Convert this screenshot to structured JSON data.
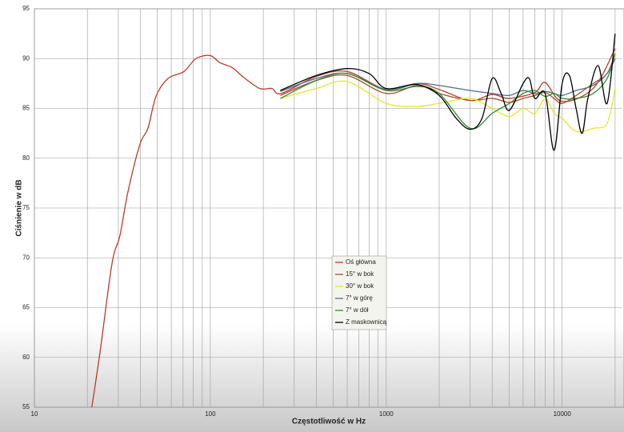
{
  "chart_data": {
    "type": "line",
    "xlabel": "Częstotliwość w Hz",
    "ylabel": "Ciśnienie w dB",
    "xlog": true,
    "grid": true,
    "xgrid_minor": true,
    "legend": "center",
    "xlim": [
      10,
      22000
    ],
    "ylim": [
      55,
      95
    ],
    "xticks": [
      10,
      100,
      1000,
      10000
    ],
    "yticks": [
      55,
      60,
      65,
      70,
      75,
      80,
      85,
      90,
      95
    ],
    "series": [
      {
        "name": "Oś główna",
        "color": "#c0392b",
        "x": [
          21.2,
          23.6,
          27.6,
          30.6,
          34,
          39.8,
          44.2,
          49.1,
          57.4,
          70.8,
          82.8,
          100,
          113,
          133,
          155,
          191,
          224,
          253,
          400,
          600,
          1000,
          1500,
          2000,
          3000,
          4000,
          5000,
          7000,
          8000,
          10000,
          15000,
          20000
        ],
        "values": [
          55,
          60.5,
          69.4,
          72.2,
          76.6,
          81.4,
          83,
          86.2,
          88,
          88.7,
          90,
          90.3,
          89.6,
          89.1,
          88.1,
          87,
          87,
          86.5,
          88.2,
          88.7,
          86.9,
          87.5,
          86.9,
          85.8,
          86.4,
          86.0,
          86.6,
          87.6,
          85.7,
          87.0,
          91.0
        ]
      },
      {
        "name": "15° w bok",
        "color": "#a0522d",
        "x": [
          250,
          400,
          600,
          1000,
          1500,
          2000,
          3000,
          4000,
          5000,
          6000,
          7000,
          8000,
          9000,
          10000,
          12000,
          15000,
          18000,
          20000
        ],
        "values": [
          86.3,
          87.8,
          88.3,
          86.5,
          87.3,
          86.5,
          85.8,
          86.0,
          85.6,
          86.0,
          86.3,
          86.6,
          86.0,
          85.5,
          86.3,
          87.5,
          88.5,
          90.5
        ]
      },
      {
        "name": "30° w bok",
        "color": "#e6e62e",
        "x": [
          250,
          400,
          600,
          1000,
          1500,
          2000,
          3000,
          4000,
          5000,
          6000,
          7000,
          8000,
          9000,
          10000,
          12000,
          15000,
          18000,
          20000
        ],
        "values": [
          86.0,
          87.0,
          87.7,
          85.5,
          85.2,
          85.5,
          86.0,
          85.0,
          84.2,
          85.0,
          84.5,
          86.0,
          84.5,
          84.0,
          82.7,
          83.0,
          83.5,
          87.0
        ]
      },
      {
        "name": "7° w górę",
        "color": "#4f6d8a",
        "x": [
          250,
          400,
          600,
          1000,
          1500,
          2000,
          3000,
          4000,
          5000,
          6000,
          7000,
          8000,
          9000,
          10000,
          12000,
          15000,
          18000,
          20000
        ],
        "values": [
          86.7,
          88.0,
          88.5,
          86.9,
          87.5,
          87.3,
          86.8,
          86.5,
          86.3,
          86.8,
          86.5,
          86.7,
          86.5,
          86.3,
          86.8,
          87.3,
          88.5,
          90.0
        ]
      },
      {
        "name": "7° w dół",
        "color": "#2e8b2e",
        "x": [
          250,
          400,
          600,
          1000,
          1500,
          2000,
          3000,
          4000,
          5000,
          6000,
          7000,
          8000,
          9000,
          10000,
          12000,
          15000,
          18000,
          20000
        ],
        "values": [
          86.0,
          87.8,
          88.5,
          86.8,
          87.2,
          86.5,
          83.0,
          84.5,
          85.5,
          86.5,
          86.8,
          86.2,
          86.5,
          86.0,
          86.0,
          86.5,
          88.0,
          90.5
        ]
      },
      {
        "name": "Z maskownicą",
        "color": "#000000",
        "x": [
          250,
          400,
          600,
          800,
          1000,
          1500,
          2000,
          2500,
          3000,
          3500,
          4000,
          4500,
          5000,
          6000,
          6500,
          7000,
          8000,
          9000,
          10000,
          11000,
          12000,
          13000,
          14000,
          16000,
          18000,
          20000
        ],
        "values": [
          86.8,
          88.3,
          89.0,
          88.5,
          87.0,
          87.4,
          86.3,
          84.0,
          82.9,
          84.0,
          88.0,
          86.5,
          84.8,
          87.5,
          88.0,
          86.0,
          86.5,
          80.8,
          87.5,
          88.3,
          85.0,
          82.5,
          86.0,
          89.3,
          85.5,
          92.5
        ]
      }
    ]
  }
}
